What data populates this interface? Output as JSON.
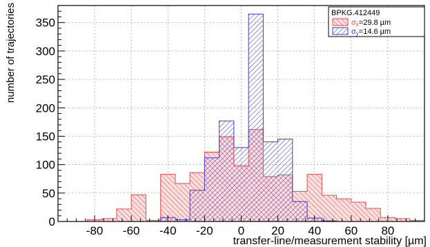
{
  "chart_data": {
    "type": "bar",
    "subtype": "histogram",
    "xlabel": "transfer-line/measurement stability [µm]",
    "ylabel": "number of trajectories",
    "xlim": [
      -100,
      100
    ],
    "ylim": [
      0,
      380
    ],
    "bin_width": 8,
    "x_ticks": [
      -80,
      -60,
      -40,
      -20,
      0,
      20,
      40,
      60,
      80
    ],
    "y_ticks": [
      0,
      50,
      100,
      150,
      200,
      250,
      300,
      350
    ],
    "grid": true,
    "legend_position": "top-right",
    "legend_title": "BPKG.412449",
    "bin_edges": [
      -100,
      -92,
      -84,
      -76,
      -68,
      -60,
      -52,
      -44,
      -36,
      -28,
      -20,
      -12,
      -4,
      4,
      12,
      20,
      28,
      36,
      44,
      52,
      60,
      68,
      76,
      84,
      92,
      100
    ],
    "series": [
      {
        "name": "σx=29.8 µm",
        "label_main": "σ",
        "label_sub": "x",
        "label_value": "=29.8 µm",
        "color": "#e8494d",
        "values": [
          0,
          0,
          3,
          5,
          22,
          47,
          2,
          83,
          67,
          86,
          122,
          149,
          98,
          162,
          79,
          82,
          53,
          83,
          46,
          40,
          34,
          23,
          7,
          5,
          2
        ]
      },
      {
        "name": "σy=14.6 µm",
        "label_main": "σ",
        "label_sub": "y",
        "label_value": "=14.6 µm",
        "color": "#3b3bd6",
        "values": [
          0,
          0,
          0,
          0,
          0,
          0,
          0,
          7,
          3,
          55,
          112,
          177,
          130,
          365,
          140,
          145,
          35,
          6,
          1,
          0,
          0,
          0,
          0,
          0,
          0
        ]
      }
    ]
  }
}
